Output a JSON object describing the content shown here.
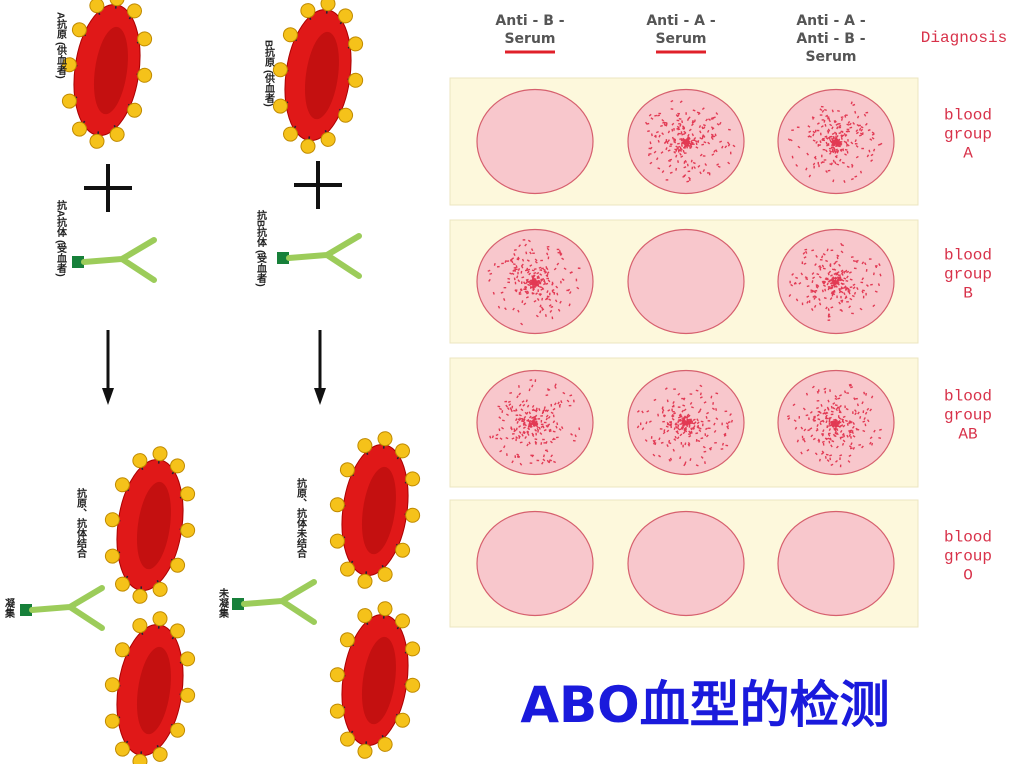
{
  "header": {
    "columns": [
      {
        "lines": [
          "Anti - B -",
          "Serum"
        ]
      },
      {
        "lines": [
          "Anti - A -",
          "Serum"
        ]
      },
      {
        "lines": [
          "Anti - A -",
          "Anti - B -",
          "Serum"
        ]
      }
    ],
    "diagnosis": "Diagnosis"
  },
  "rows": [
    {
      "lines": [
        "blood",
        "group",
        "A"
      ]
    },
    {
      "lines": [
        "blood",
        "group",
        "B"
      ]
    },
    {
      "lines": [
        "blood",
        "group",
        "AB"
      ]
    },
    {
      "lines": [
        "blood",
        "group",
        "O"
      ]
    }
  ],
  "left": {
    "antigen_a": "A抗原 (供血者)",
    "antibody_a": "抗A抗体 (受血者)",
    "antigen_b": "B抗原 (供血者)",
    "antibody_b": "抗B抗体 (受血者)",
    "bound": "抗原、抗体结合",
    "agglutination": "凝集",
    "unbound": "抗原、抗体未结合",
    "no_agglutination": "未凝集"
  },
  "title": "ABO血型的检测"
}
